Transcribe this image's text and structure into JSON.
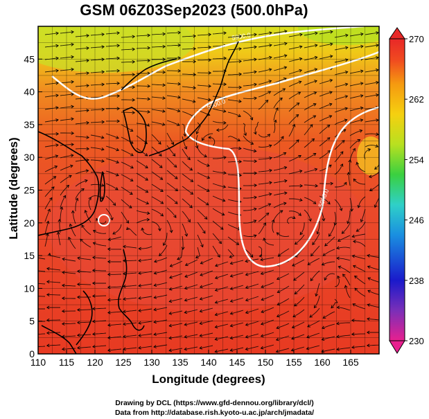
{
  "title": "GSM 06Z03Sep2023 (500.0hPa)",
  "map": {
    "xlabel": "Longitude (degrees)",
    "ylabel": "Latitude  (degrees)",
    "xticks": [
      "110",
      "115",
      "120",
      "125",
      "130",
      "135",
      "140",
      "145",
      "150",
      "155",
      "160",
      "165"
    ],
    "yticks": [
      "0",
      "5",
      "10",
      "15",
      "20",
      "25",
      "30",
      "35",
      "40",
      "45"
    ],
    "xlim": [
      110,
      170
    ],
    "ylim": [
      0,
      50
    ],
    "grid": true,
    "field": "geopotential / streamlines at 500.0hPa",
    "contour_labels": [
      "5900.0",
      "5900.0",
      "5900.0"
    ]
  },
  "colorbar": {
    "ticks": [
      "270",
      "262",
      "254",
      "246",
      "238",
      "230"
    ],
    "range": [
      230,
      270
    ],
    "colors": [
      "#e8208f",
      "#7a2fb8",
      "#1a1acb",
      "#1a8fe0",
      "#2fd0c8",
      "#3ad040",
      "#b8e020",
      "#f5d010",
      "#f59a10",
      "#f04a20",
      "#e82828"
    ]
  },
  "credits": {
    "line1": "Drawing by DCL (https://www.gfd-dennou.org/library/dcl/)",
    "line2": "Data from http://database.rish.kyoto-u.ac.jp/arch/jmadata/"
  }
}
